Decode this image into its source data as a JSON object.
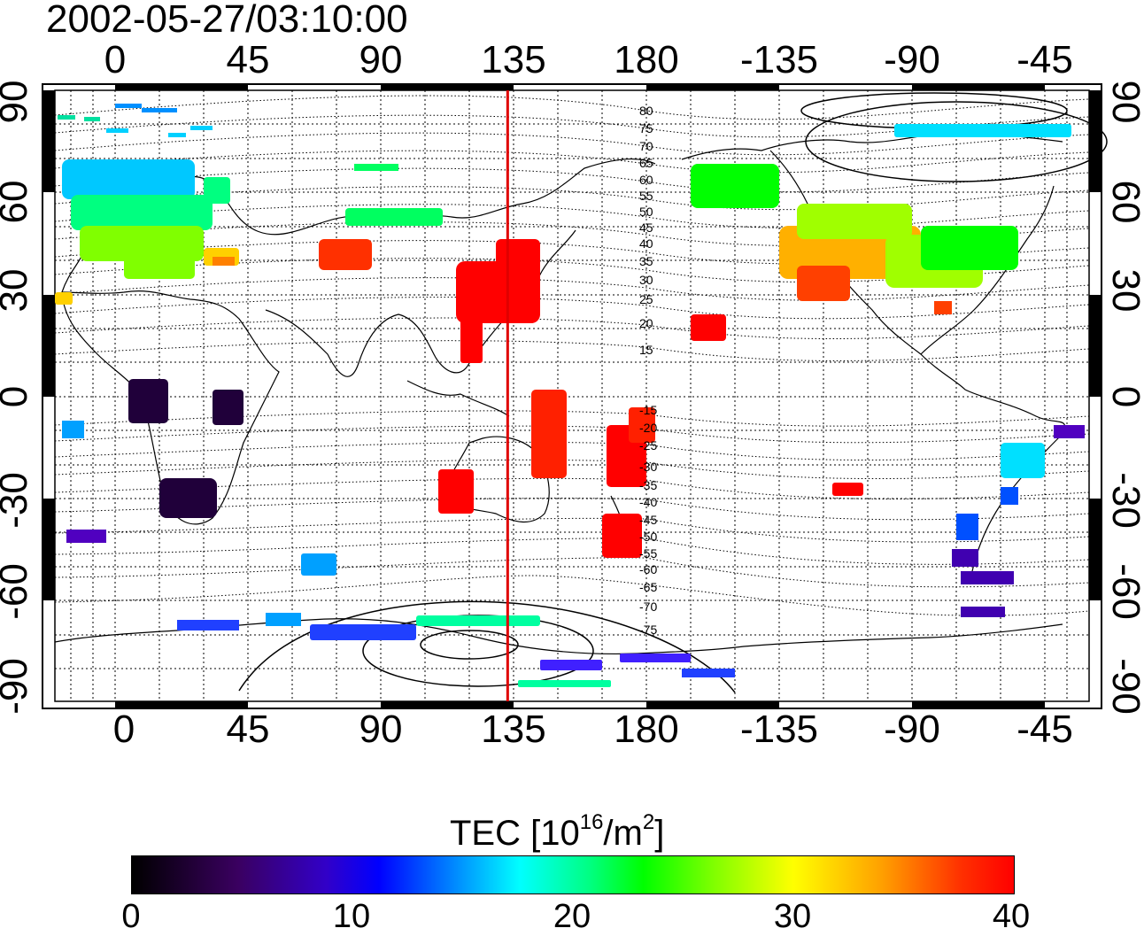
{
  "timestamp": "2002-05-27/03:10:00",
  "lon_ticks": [
    "0",
    "45",
    "90",
    "135",
    "180",
    "-135",
    "-90",
    "-45"
  ],
  "lat_ticks": [
    "90",
    "60",
    "30",
    "0",
    "-30",
    "-60",
    "-90"
  ],
  "contour_labels": [
    "80",
    "75",
    "70",
    "65",
    "60",
    "55",
    "50",
    "45",
    "40",
    "35",
    "30",
    "25",
    "20",
    "15",
    "-15",
    "-20",
    "-25",
    "-30",
    "-35",
    "-40",
    "-45",
    "-50",
    "-55",
    "-60",
    "-65",
    "-70",
    "-75"
  ],
  "colorbar": {
    "title_main": "TEC  [10",
    "title_exp1": "16",
    "title_mid": "/m",
    "title_exp2": "2",
    "title_end": "]",
    "ticks": [
      "0",
      "10",
      "20",
      "30",
      "40"
    ],
    "range": [
      0,
      40
    ]
  },
  "terminator_longitude": 133,
  "colors": {
    "terminator": "#e00000",
    "frame": "#000000"
  }
}
